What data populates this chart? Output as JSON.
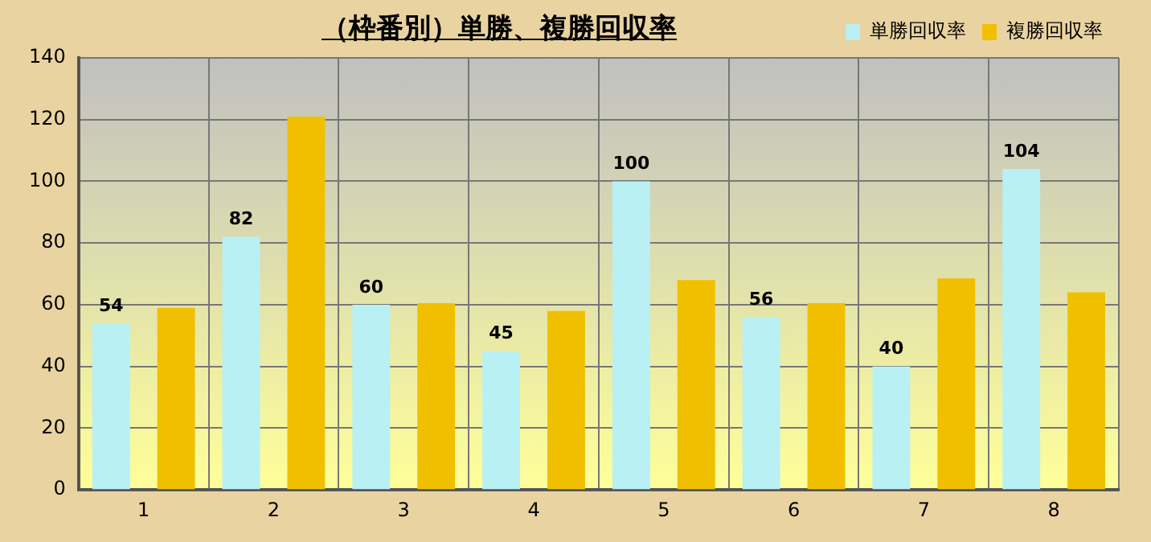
{
  "chart_data": {
    "type": "bar",
    "title": "（枠番別）単勝、複勝回収率",
    "categories": [
      "1",
      "2",
      "3",
      "4",
      "5",
      "6",
      "7",
      "8"
    ],
    "series": [
      {
        "name": "単勝回収率",
        "color": "#b8f0f4",
        "values": [
          54,
          82,
          60,
          45,
          100,
          56,
          40,
          104
        ],
        "value_labels": [
          "54",
          "82",
          "60",
          "45",
          "100",
          "56",
          "40",
          "104"
        ]
      },
      {
        "name": "複勝回収率",
        "color": "#f0c000",
        "values": [
          59,
          121,
          60.5,
          58,
          68,
          60.5,
          68.5,
          64
        ]
      }
    ],
    "ylim": [
      0,
      140
    ],
    "yticks": [
      0,
      20,
      40,
      60,
      80,
      100,
      120,
      140
    ],
    "grid": true,
    "legend": "top right"
  }
}
